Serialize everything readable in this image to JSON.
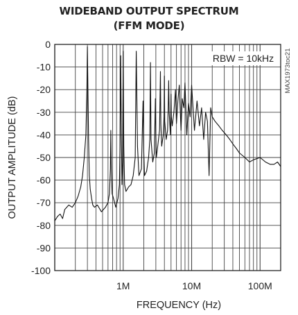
{
  "chart_data": {
    "type": "line",
    "title": "WIDEBAND OUTPUT SPECTRUM",
    "subtitle": "(FFM MODE)",
    "xlabel": "FREQUENCY (Hz)",
    "ylabel": "OUTPUT AMPLITUDE (dB)",
    "x_scale": "log",
    "xlim": [
      100000,
      200000000
    ],
    "ylim": [
      -100,
      0
    ],
    "x_ticks": [
      {
        "value": 1000000,
        "label": "1M"
      },
      {
        "value": 10000000,
        "label": "10M"
      },
      {
        "value": 100000000,
        "label": "100M"
      }
    ],
    "y_ticks": [
      0,
      -10,
      -20,
      -30,
      -40,
      -50,
      -60,
      -70,
      -80,
      -90,
      -100
    ],
    "grid": true,
    "annotations": [
      "RBW = 10kHz",
      "MAX1973toc21"
    ],
    "series": [
      {
        "x": [
          100000,
          110000,
          120000,
          130000,
          140000,
          160000,
          180000,
          200000,
          220000,
          240000,
          255000,
          270000,
          285000,
          295000,
          300000,
          305000,
          312000,
          320000,
          330000,
          345000,
          360000,
          380000,
          420000,
          480000,
          550000,
          600000,
          630000,
          650000,
          660000,
          670000,
          690000,
          720000,
          780000,
          840000,
          880000,
          900000,
          920000,
          940000,
          960000,
          980000,
          1000000,
          1020000,
          1050000,
          1100000,
          1200000,
          1300000,
          1400000,
          1500000,
          1550000,
          1620000,
          1700000,
          1850000,
          1950000,
          2000000,
          2050000,
          2200000,
          2350000,
          2450000,
          2500000,
          2550000,
          2700000,
          2850000,
          2950000,
          3000000,
          3050000,
          3200000,
          3400000,
          3500000,
          3550000,
          3650000,
          3850000,
          3950000,
          4000000,
          4050000,
          4250000,
          4450000,
          4550000,
          4620000,
          4700000,
          4900000,
          5000000,
          5050000,
          5200000,
          5500000,
          5800000,
          6000000,
          6300000,
          6600000,
          7000000,
          7300000,
          7700000,
          8000000,
          8500000,
          9000000,
          9500000,
          10000000,
          11000000,
          12000000,
          13000000,
          14000000,
          15000000,
          16000000,
          17000000,
          18000000,
          19000000,
          20000000,
          22000000,
          25000000,
          28000000,
          32000000,
          36000000,
          40000000,
          45000000,
          50000000,
          60000000,
          70000000,
          80000000,
          100000000,
          120000000,
          140000000,
          160000000,
          180000000,
          200000000
        ],
        "y": [
          -78,
          -76,
          -75,
          -77,
          -73,
          -71,
          -72,
          -70,
          -67,
          -63,
          -58,
          -50,
          -40,
          -20,
          -1,
          -18,
          -42,
          -58,
          -64,
          -68,
          -71,
          -72,
          -71,
          -74,
          -72,
          -70,
          -66,
          -55,
          -38,
          -55,
          -66,
          -68,
          -72,
          -68,
          -62,
          -45,
          -5,
          -40,
          -62,
          -52,
          -3,
          -45,
          -62,
          -65,
          -63,
          -62,
          -58,
          -50,
          -3,
          -45,
          -58,
          -55,
          -25,
          -48,
          -58,
          -56,
          -50,
          -42,
          -8,
          -42,
          -52,
          -48,
          -24,
          -40,
          -50,
          -45,
          -38,
          -12,
          -35,
          -45,
          -40,
          -32,
          -14,
          -34,
          -42,
          -38,
          -28,
          -16,
          -30,
          -40,
          -22,
          -32,
          -36,
          -30,
          -20,
          -35,
          -25,
          -18,
          -38,
          -24,
          -28,
          -17,
          -40,
          -26,
          -32,
          -18,
          -38,
          -25,
          -36,
          -28,
          -42,
          -30,
          -34,
          -58,
          -28,
          -32,
          -34,
          -36,
          -38,
          -40,
          -42,
          -44,
          -46,
          -48,
          -50,
          -52,
          -51,
          -50,
          -52,
          -53,
          -53,
          -52,
          -54
        ]
      }
    ]
  }
}
